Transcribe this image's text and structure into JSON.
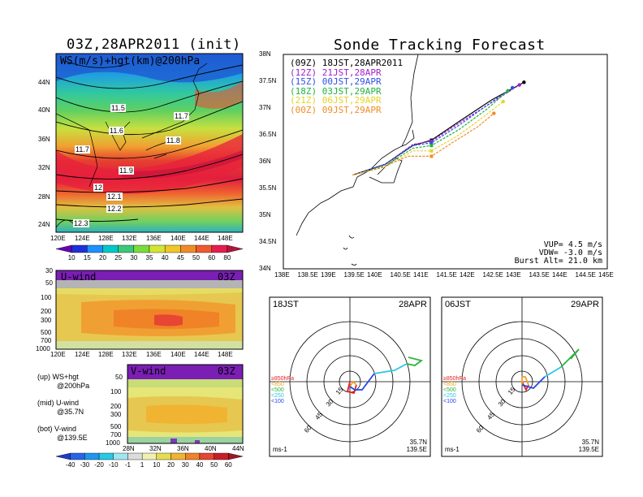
{
  "titles": {
    "left": "03Z,28APR2011 (init)",
    "right": "Sonde Tracking Forecast"
  },
  "map_panel": {
    "caption": "WS(m/s)+hgt(km)@200hPa",
    "lat_ticks": [
      "44N",
      "40N",
      "36N",
      "32N",
      "28N",
      "24N"
    ],
    "lon_ticks": [
      "120E",
      "124E",
      "128E",
      "132E",
      "136E",
      "140E",
      "144E",
      "148E"
    ],
    "contour_labels": [
      "11.5",
      "11.7",
      "11.6",
      "11.8",
      "11.7",
      "11.9",
      "12",
      "12.1",
      "12.2",
      "12.3"
    ]
  },
  "ws_colorbar": {
    "labels": [
      "10",
      "15",
      "20",
      "25",
      "30",
      "35",
      "40",
      "45",
      "50",
      "60",
      "80"
    ],
    "colors": [
      "#6a00b4",
      "#2030d8",
      "#1e90ff",
      "#00c8c8",
      "#3cc878",
      "#78dc3c",
      "#d2e632",
      "#f0c828",
      "#f08c28",
      "#f05a32",
      "#e61e50",
      "#b4143c"
    ]
  },
  "uwind_panel": {
    "caption": "U-wind",
    "time": "03Z",
    "p_ticks": [
      "30",
      "50",
      "100",
      "200",
      "300",
      "500",
      "700",
      "1000"
    ],
    "lon_ticks": [
      "120E",
      "124E",
      "128E",
      "132E",
      "136E",
      "140E",
      "144E",
      "148E"
    ]
  },
  "vwind_panel": {
    "caption": "V-wind",
    "time": "03Z",
    "p_ticks": [
      "50",
      "100",
      "200",
      "300",
      "500",
      "700",
      "1000"
    ],
    "lat_ticks": [
      "28N",
      "32N",
      "36N",
      "40N",
      "44N"
    ]
  },
  "notes": [
    {
      "a": "(up) WS+hgt",
      "b": "@200hPa"
    },
    {
      "a": "(mid) U-wind",
      "b": "@35.7N"
    },
    {
      "a": "(bot) V-wind",
      "b": "@139.5E"
    }
  ],
  "wind_colorbar": {
    "labels": [
      "-40",
      "-30",
      "-20",
      "-10",
      "-1",
      "1",
      "10",
      "20",
      "30",
      "40",
      "50",
      "60"
    ],
    "colors": [
      "#1e3cc8",
      "#2864e6",
      "#1e96f0",
      "#28c8e6",
      "#a0e6f0",
      "#dcdcdc",
      "#f0f0b4",
      "#e6dc50",
      "#f0b432",
      "#f08228",
      "#e64632",
      "#c81e28"
    ]
  },
  "track_panel": {
    "lat_ticks": [
      "38N",
      "37.5N",
      "37N",
      "36.5N",
      "36N",
      "35.5N",
      "35N",
      "34.5N",
      "34N"
    ],
    "lon_ticks": [
      "138E",
      "138.5E",
      "139E",
      "139.5E",
      "140E",
      "140.5E",
      "141E",
      "141.5E",
      "142E",
      "142.5E",
      "143E",
      "143.5E",
      "144E",
      "144.5E",
      "145E"
    ],
    "legend": [
      {
        "label": "(09Z) 18JST,28APR2011",
        "color": "#000000"
      },
      {
        "label": "(12Z) 21JST,28APR",
        "color": "#a020c8"
      },
      {
        "label": "(15Z) 00JST,29APR",
        "color": "#3050e6"
      },
      {
        "label": "(18Z) 03JST,29APR",
        "color": "#20b43c"
      },
      {
        "label": "(21Z) 06JST,29APR",
        "color": "#e6d228"
      },
      {
        "label": "(00Z) 09JST,29APR",
        "color": "#f08c28"
      }
    ],
    "params": [
      "VUP= 4.5 m/s",
      "VDW= -3.0 m/s",
      "Burst Alt= 21.0 km"
    ]
  },
  "hodo_left": {
    "time": "18JST",
    "date": "28APR",
    "ring_labels": [
      "15",
      "30",
      "45",
      "60"
    ],
    "levels": [
      "≥850hPa",
      "<850",
      "<500",
      "<250",
      "<100"
    ],
    "level_colors": [
      "#e61e1e",
      "#f0a028",
      "#2ab43c",
      "#28c8e6",
      "#2846e6"
    ],
    "units": "ms-1",
    "lat": "35.7N",
    "lon": "139.5E"
  },
  "hodo_right": {
    "time": "06JST",
    "date": "29APR",
    "ring_labels": [
      "15",
      "30",
      "45",
      "60"
    ],
    "levels": [
      "≥850hPa",
      "<850",
      "<500",
      "<250",
      "<100"
    ],
    "level_colors": [
      "#e61e1e",
      "#f0a028",
      "#2ab43c",
      "#28c8e6",
      "#2846e6"
    ],
    "units": "ms-1",
    "lat": "35.7N",
    "lon": "139.5E"
  },
  "chart_data": {
    "type": "line",
    "title": "Sonde Tracking Forecast",
    "xlim": [
      138,
      145
    ],
    "ylim": [
      34,
      38
    ],
    "series": [
      {
        "name": "(09Z) 18JST,28APR2011",
        "x": [
          139.5,
          140.2,
          140.8,
          141.2,
          141.8,
          142.5,
          143.2
        ],
        "y": [
          35.75,
          35.95,
          36.3,
          36.4,
          36.75,
          37.15,
          37.48
        ]
      },
      {
        "name": "(12Z) 21JST,28APR",
        "x": [
          139.5,
          140.2,
          140.8,
          141.2,
          141.8,
          142.5,
          143.1
        ],
        "y": [
          35.75,
          35.95,
          36.32,
          36.38,
          36.72,
          37.1,
          37.43
        ]
      },
      {
        "name": "(15Z) 00JST,29APR",
        "x": [
          139.5,
          140.2,
          140.8,
          141.2,
          141.8,
          142.4,
          142.95
        ],
        "y": [
          35.75,
          35.95,
          36.3,
          36.35,
          36.68,
          37.05,
          37.38
        ]
      },
      {
        "name": "(18Z) 03JST,29APR",
        "x": [
          139.5,
          140.2,
          140.8,
          141.2,
          141.8,
          142.4,
          142.85
        ],
        "y": [
          35.75,
          35.92,
          36.25,
          36.3,
          36.6,
          36.98,
          37.32
        ]
      },
      {
        "name": "(21Z) 06JST,29APR",
        "x": [
          139.5,
          140.2,
          140.8,
          141.2,
          141.8,
          142.3,
          142.75
        ],
        "y": [
          35.75,
          35.9,
          36.2,
          36.2,
          36.5,
          36.82,
          37.12
        ]
      },
      {
        "name": "(00Z) 09JST,29APR",
        "x": [
          139.5,
          140.1,
          140.7,
          141.2,
          141.7,
          142.2,
          142.55
        ],
        "y": [
          35.75,
          35.88,
          36.1,
          36.1,
          36.38,
          36.65,
          36.9
        ]
      }
    ]
  }
}
